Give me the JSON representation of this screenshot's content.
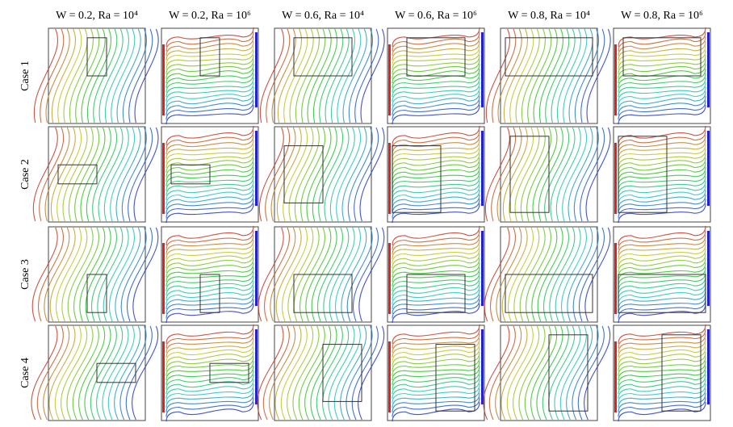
{
  "columns": [
    "W = 0.2, Ra = 10⁴",
    "W = 0.2, Ra = 10⁶",
    "W = 0.6, Ra = 10⁴",
    "W = 0.6, Ra = 10⁶",
    "W = 0.8, Ra = 10⁴",
    "W = 0.8, Ra = 10⁶"
  ],
  "rows": [
    "Case 1",
    "Case 2",
    "Case 3",
    "Case 4"
  ]
}
